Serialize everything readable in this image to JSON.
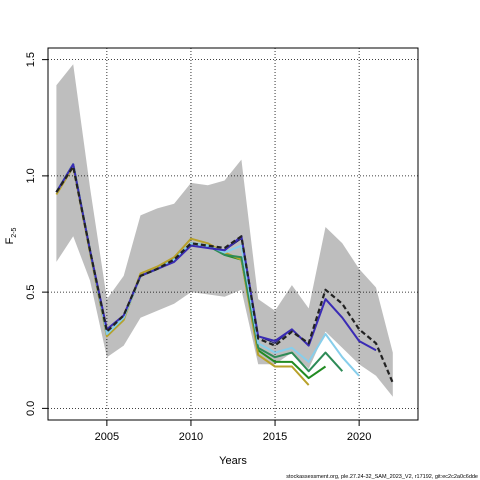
{
  "chart_data": {
    "type": "line",
    "xlabel": "Years",
    "ylabel": "F",
    "ylabel_sub": "2-5",
    "xlim": [
      2001.5,
      2023.5
    ],
    "ylim": [
      -0.05,
      1.55
    ],
    "x_ticks": [
      2005,
      2010,
      2015,
      2020
    ],
    "y_ticks": [
      0.0,
      0.5,
      1.0,
      1.5
    ],
    "x_tick_labels": [
      "2005",
      "2010",
      "2015",
      "2020"
    ],
    "y_tick_labels": [
      "0.0",
      "0.5",
      "1.0",
      "1.5"
    ],
    "grid": true,
    "footnote": "stockassessment.org, ple.27.24-32_SAM_2023_V2, r17192, git:ec2c2a0c6dde",
    "confidence_band": {
      "color": "#bebebe",
      "x": [
        2002,
        2003,
        2004,
        2005,
        2006,
        2007,
        2008,
        2009,
        2010,
        2011,
        2012,
        2013,
        2014,
        2015,
        2016,
        2017,
        2018,
        2019,
        2020,
        2021,
        2022
      ],
      "upper": [
        1.39,
        1.48,
        0.95,
        0.47,
        0.57,
        0.83,
        0.86,
        0.88,
        0.97,
        0.96,
        0.98,
        1.07,
        0.47,
        0.42,
        0.53,
        0.43,
        0.78,
        0.71,
        0.6,
        0.52,
        0.24
      ],
      "lower": [
        0.63,
        0.74,
        0.55,
        0.22,
        0.27,
        0.39,
        0.42,
        0.45,
        0.5,
        0.49,
        0.48,
        0.51,
        0.19,
        0.19,
        0.24,
        0.17,
        0.33,
        0.26,
        0.19,
        0.14,
        0.05
      ]
    },
    "series": [
      {
        "color": "#228b22",
        "width": 2,
        "dash": "",
        "x": [
          2002,
          2003,
          2004,
          2005,
          2006,
          2007,
          2008,
          2009,
          2010,
          2011,
          2012,
          2013,
          2014,
          2015,
          2016,
          2017,
          2018
        ],
        "values": [
          0.93,
          1.05,
          0.68,
          0.32,
          0.39,
          0.57,
          0.6,
          0.64,
          0.71,
          0.7,
          0.66,
          0.64,
          0.25,
          0.2,
          0.2,
          0.13,
          0.18
        ]
      },
      {
        "color": "#b8a12a",
        "width": 2,
        "dash": "",
        "x": [
          2002,
          2003,
          2004,
          2005,
          2006,
          2007,
          2008,
          2009,
          2010,
          2011,
          2012,
          2013,
          2014,
          2015,
          2016,
          2017
        ],
        "values": [
          0.92,
          1.04,
          0.67,
          0.31,
          0.38,
          0.58,
          0.61,
          0.65,
          0.73,
          0.71,
          0.67,
          0.64,
          0.23,
          0.18,
          0.18,
          0.1
        ]
      },
      {
        "color": "#2e8b57",
        "width": 2,
        "dash": "",
        "x": [
          2002,
          2003,
          2004,
          2005,
          2006,
          2007,
          2008,
          2009,
          2010,
          2011,
          2012,
          2013,
          2014,
          2015,
          2016,
          2017,
          2018,
          2019
        ],
        "values": [
          0.93,
          1.05,
          0.68,
          0.32,
          0.39,
          0.57,
          0.6,
          0.64,
          0.71,
          0.7,
          0.66,
          0.65,
          0.26,
          0.22,
          0.24,
          0.16,
          0.24,
          0.16
        ]
      },
      {
        "color": "#87ceeb",
        "width": 2,
        "dash": "",
        "x": [
          2002,
          2003,
          2004,
          2005,
          2006,
          2007,
          2008,
          2009,
          2010,
          2011,
          2012,
          2013,
          2014,
          2015,
          2016,
          2017,
          2018,
          2019,
          2020
        ],
        "values": [
          0.93,
          1.05,
          0.68,
          0.32,
          0.39,
          0.57,
          0.6,
          0.64,
          0.71,
          0.7,
          0.67,
          0.7,
          0.28,
          0.24,
          0.26,
          0.2,
          0.32,
          0.22,
          0.14
        ]
      },
      {
        "color": "#191970",
        "width": 1,
        "dash": "",
        "x": [
          2002,
          2003,
          2004,
          2005,
          2006,
          2007,
          2008,
          2009,
          2010,
          2011,
          2012,
          2013,
          2014,
          2015,
          2016,
          2017,
          2018,
          2019,
          2020,
          2021
        ],
        "values": [
          0.93,
          1.05,
          0.68,
          0.34,
          0.4,
          0.57,
          0.6,
          0.63,
          0.7,
          0.69,
          0.68,
          0.73,
          0.31,
          0.28,
          0.34,
          0.27,
          0.47,
          0.39,
          0.29,
          0.25
        ]
      },
      {
        "color": "#3a2bb5",
        "width": 2,
        "dash": "",
        "x": [
          2002,
          2003,
          2004,
          2005,
          2006,
          2007,
          2008,
          2009,
          2010,
          2011,
          2012,
          2013,
          2014,
          2015,
          2016,
          2017,
          2018,
          2019,
          2020,
          2021
        ],
        "values": [
          0.93,
          1.05,
          0.68,
          0.34,
          0.4,
          0.57,
          0.6,
          0.63,
          0.7,
          0.69,
          0.68,
          0.74,
          0.31,
          0.29,
          0.34,
          0.27,
          0.47,
          0.39,
          0.29,
          0.25
        ]
      },
      {
        "color": "#222222",
        "width": 2.2,
        "dash": "5,3",
        "x": [
          2002,
          2003,
          2004,
          2005,
          2006,
          2007,
          2008,
          2009,
          2010,
          2011,
          2012,
          2013,
          2014,
          2015,
          2016,
          2017,
          2018,
          2019,
          2020,
          2021,
          2022
        ],
        "values": [
          0.93,
          1.04,
          0.68,
          0.33,
          0.4,
          0.57,
          0.6,
          0.64,
          0.71,
          0.7,
          0.69,
          0.74,
          0.3,
          0.27,
          0.33,
          0.28,
          0.51,
          0.45,
          0.34,
          0.28,
          0.11
        ]
      }
    ]
  }
}
